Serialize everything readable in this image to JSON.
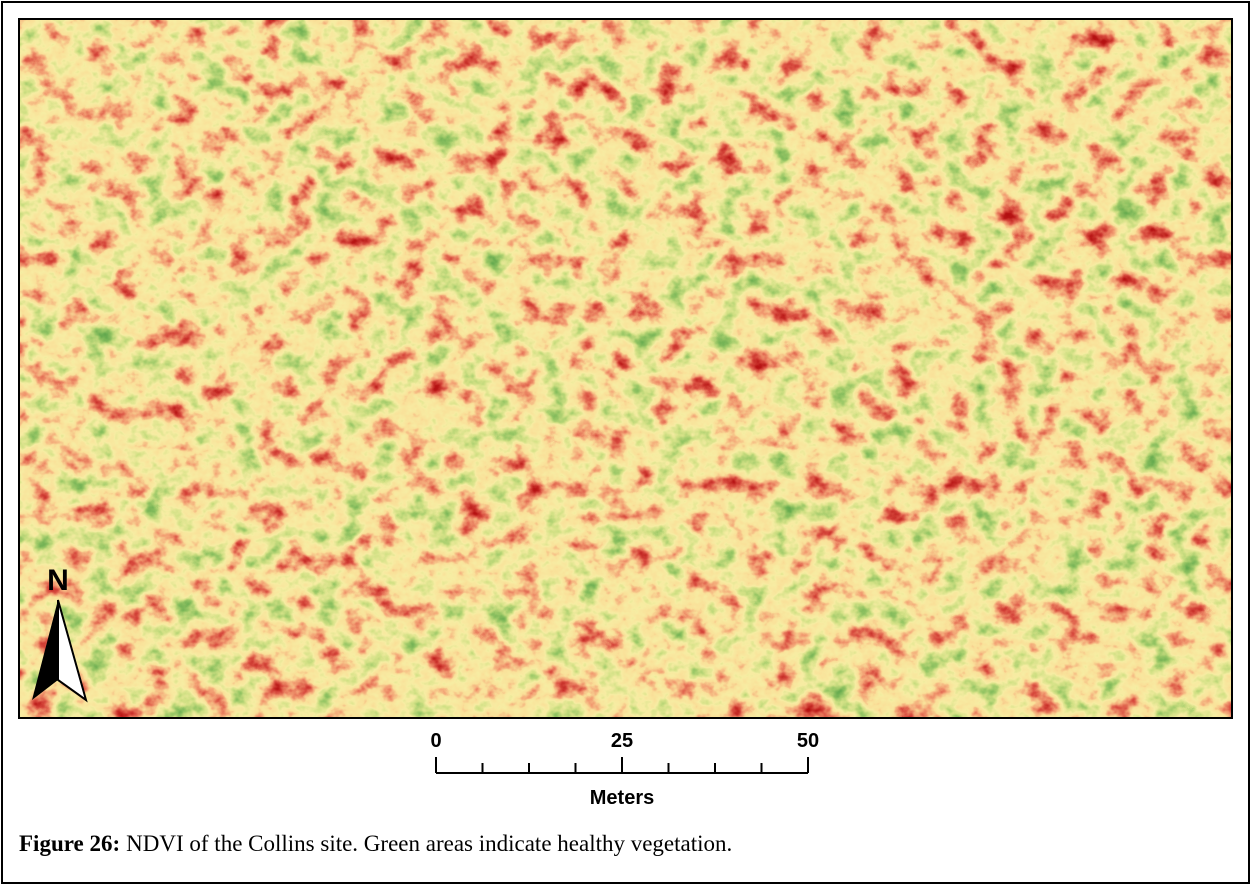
{
  "north_arrow": {
    "label": "N"
  },
  "scale_bar": {
    "labels": [
      0,
      25,
      50
    ],
    "unit": "Meters"
  },
  "caption": {
    "label": "Figure 26:",
    "text": "NDVI of the Collins site. Green areas indicate healthy vegetation."
  }
}
